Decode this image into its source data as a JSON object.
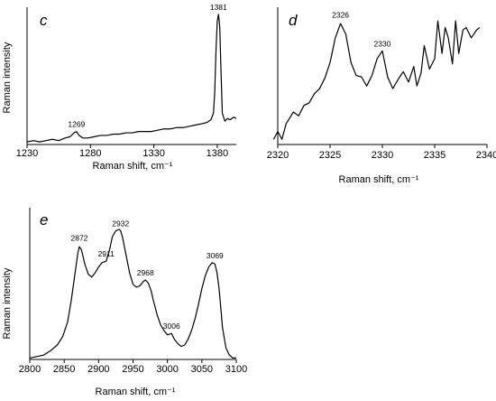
{
  "chart_data": [
    {
      "panel": "c",
      "type": "line",
      "xlabel": "Raman shift, cm⁻¹",
      "ylabel": "Raman intensity",
      "xlim": [
        1230,
        1395
      ],
      "ylim": [
        0,
        1
      ],
      "xticks": [
        1230,
        1280,
        1330,
        1380
      ],
      "yticks": [],
      "grid": false,
      "annotations": [
        {
          "x": 1269,
          "y": 0.1,
          "label": "1269"
        },
        {
          "x": 1381,
          "y": 1.0,
          "label": "1381"
        }
      ],
      "series": [
        {
          "x": [
            1230,
            1235,
            1240,
            1245,
            1250,
            1255,
            1260,
            1264,
            1267,
            1269,
            1271,
            1274,
            1278,
            1283,
            1288,
            1293,
            1298,
            1303,
            1308,
            1313,
            1318,
            1323,
            1328,
            1333,
            1338,
            1343,
            1348,
            1353,
            1358,
            1363,
            1368,
            1372,
            1375,
            1377,
            1378,
            1379,
            1380,
            1381,
            1382,
            1383,
            1384,
            1386,
            1388,
            1390,
            1393,
            1395
          ],
          "y": [
            0.02,
            0.03,
            0.02,
            0.03,
            0.04,
            0.03,
            0.05,
            0.06,
            0.09,
            0.1,
            0.07,
            0.05,
            0.05,
            0.06,
            0.07,
            0.07,
            0.08,
            0.08,
            0.09,
            0.09,
            0.1,
            0.1,
            0.1,
            0.11,
            0.12,
            0.12,
            0.13,
            0.13,
            0.14,
            0.15,
            0.16,
            0.17,
            0.19,
            0.24,
            0.4,
            0.72,
            0.95,
            1.0,
            0.9,
            0.55,
            0.24,
            0.18,
            0.2,
            0.19,
            0.21,
            0.2
          ]
        }
      ]
    },
    {
      "panel": "d",
      "type": "line",
      "xlabel": "Raman shift, cm⁻¹",
      "ylabel": "",
      "xlim": [
        2320,
        2340
      ],
      "ylim": [
        0,
        1
      ],
      "xticks": [
        2320,
        2325,
        2330,
        2335,
        2340
      ],
      "yticks": [],
      "grid": false,
      "annotations": [
        {
          "x": 2326,
          "y": 0.94,
          "label": "2326"
        },
        {
          "x": 2330,
          "y": 0.72,
          "label": "2330"
        }
      ],
      "series": [
        {
          "x": [
            2319.6,
            2320,
            2320.4,
            2320.8,
            2321.5,
            2322,
            2322.5,
            2323,
            2323.5,
            2324,
            2324.5,
            2325,
            2325.5,
            2326,
            2326.5,
            2327,
            2327.5,
            2328,
            2328.5,
            2329,
            2329.5,
            2330,
            2330.5,
            2331,
            2331.5,
            2332,
            2332.5,
            2333,
            2333.3,
            2333.7,
            2334,
            2334.5,
            2335,
            2335.3,
            2335.7,
            2336,
            2336.3,
            2336.7,
            2337,
            2337.3,
            2337.7,
            2338,
            2338.5,
            2339,
            2339.3
          ],
          "y": [
            0.04,
            0.1,
            0.04,
            0.16,
            0.25,
            0.22,
            0.3,
            0.32,
            0.39,
            0.43,
            0.51,
            0.63,
            0.82,
            0.93,
            0.85,
            0.63,
            0.53,
            0.52,
            0.45,
            0.53,
            0.66,
            0.72,
            0.52,
            0.43,
            0.5,
            0.56,
            0.48,
            0.6,
            0.45,
            0.55,
            0.76,
            0.58,
            0.66,
            0.95,
            0.7,
            0.9,
            0.82,
            0.62,
            0.95,
            0.7,
            0.88,
            0.9,
            0.82,
            0.88,
            0.9
          ]
        }
      ]
    },
    {
      "panel": "e",
      "type": "line",
      "xlabel": "Raman shift, cm⁻¹",
      "ylabel": "Raman intensity",
      "xlim": [
        2800,
        3100
      ],
      "ylim": [
        0,
        1
      ],
      "xticks": [
        2800,
        2850,
        2900,
        2950,
        3000,
        3050,
        3100
      ],
      "yticks": [],
      "grid": false,
      "annotations": [
        {
          "x": 2872,
          "y": 0.79,
          "label": "2872"
        },
        {
          "x": 2911,
          "y": 0.68,
          "label": "2911"
        },
        {
          "x": 2932,
          "y": 0.89,
          "label": "2932"
        },
        {
          "x": 2968,
          "y": 0.55,
          "label": "2968"
        },
        {
          "x": 3006,
          "y": 0.18,
          "label": "3006"
        },
        {
          "x": 3069,
          "y": 0.67,
          "label": "3069"
        }
      ],
      "series": [
        {
          "x": [
            2800,
            2810,
            2820,
            2830,
            2840,
            2848,
            2855,
            2860,
            2865,
            2870,
            2872,
            2875,
            2880,
            2885,
            2890,
            2895,
            2900,
            2905,
            2911,
            2916,
            2920,
            2925,
            2930,
            2932,
            2935,
            2940,
            2945,
            2950,
            2955,
            2960,
            2965,
            2968,
            2972,
            2976,
            2980,
            2985,
            2990,
            2995,
            3000,
            3006,
            3010,
            3015,
            3020,
            3025,
            3030,
            3035,
            3040,
            3045,
            3050,
            3055,
            3060,
            3065,
            3069,
            3072,
            3075,
            3078,
            3080,
            3085,
            3090,
            3095,
            3100
          ],
          "y": [
            0.01,
            0.02,
            0.03,
            0.06,
            0.1,
            0.16,
            0.26,
            0.4,
            0.57,
            0.74,
            0.78,
            0.76,
            0.66,
            0.59,
            0.57,
            0.6,
            0.64,
            0.67,
            0.68,
            0.76,
            0.85,
            0.89,
            0.9,
            0.89,
            0.84,
            0.72,
            0.6,
            0.52,
            0.5,
            0.51,
            0.54,
            0.55,
            0.53,
            0.48,
            0.4,
            0.31,
            0.24,
            0.2,
            0.17,
            0.18,
            0.14,
            0.11,
            0.09,
            0.1,
            0.14,
            0.2,
            0.28,
            0.38,
            0.49,
            0.58,
            0.64,
            0.67,
            0.66,
            0.6,
            0.49,
            0.33,
            0.22,
            0.08,
            0.03,
            0.01,
            0.01
          ]
        }
      ]
    }
  ]
}
